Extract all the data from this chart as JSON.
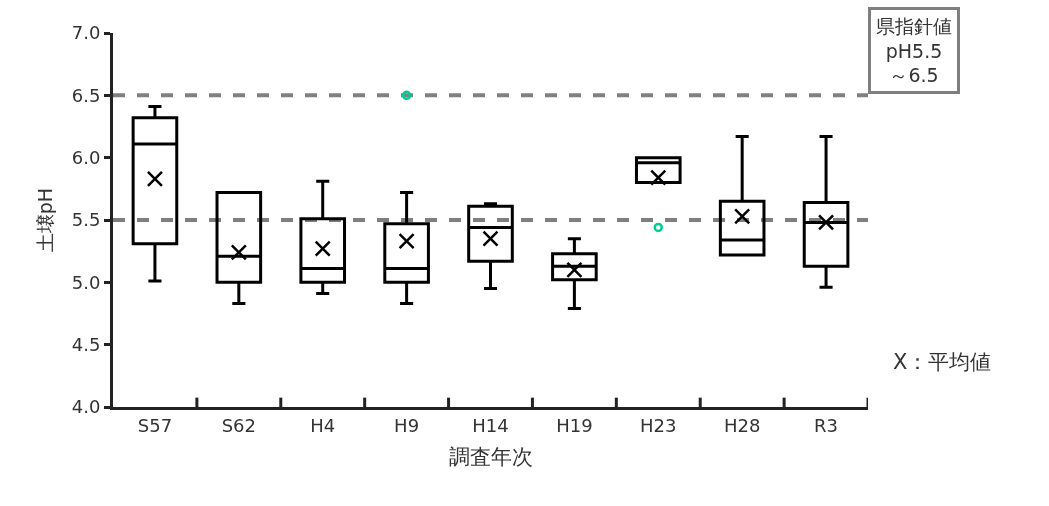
{
  "chart_data": {
    "type": "box",
    "xlabel": "調査年次",
    "ylabel": "土壌pH",
    "categories": [
      "S57",
      "S62",
      "H4",
      "H9",
      "H14",
      "H19",
      "H23",
      "H28",
      "R3"
    ],
    "boxes": [
      {
        "low": 5.01,
        "q1": 5.31,
        "median": 6.11,
        "q3": 6.32,
        "high": 6.41,
        "mean": 5.83
      },
      {
        "low": 4.83,
        "q1": 5.0,
        "median": 5.21,
        "q3": 5.72,
        "high": 5.72,
        "mean": 5.24
      },
      {
        "low": 4.91,
        "q1": 5.0,
        "median": 5.11,
        "q3": 5.51,
        "high": 5.81,
        "mean": 5.27
      },
      {
        "low": 4.83,
        "q1": 5.0,
        "median": 5.11,
        "q3": 5.47,
        "high": 5.72,
        "mean": 5.33,
        "outliers": [
          6.5
        ]
      },
      {
        "low": 4.95,
        "q1": 5.17,
        "median": 5.44,
        "q3": 5.61,
        "high": 5.63,
        "mean": 5.35
      },
      {
        "low": 4.79,
        "q1": 5.02,
        "median": 5.13,
        "q3": 5.23,
        "high": 5.35,
        "mean": 5.1
      },
      {
        "low": 5.8,
        "q1": 5.8,
        "median": 5.96,
        "q3": 6.0,
        "high": 6.0,
        "mean": 5.84,
        "outliers": [
          5.44
        ]
      },
      {
        "low": 5.22,
        "q1": 5.22,
        "median": 5.34,
        "q3": 5.65,
        "high": 6.17,
        "mean": 5.53
      },
      {
        "low": 4.96,
        "q1": 5.13,
        "median": 5.48,
        "q3": 5.64,
        "high": 6.17,
        "mean": 5.48
      }
    ],
    "color": "#000000",
    "ylim": [
      4.0,
      7.0
    ],
    "yticks": [
      {
        "value": 4.0,
        "label": "4.0"
      },
      {
        "value": 4.5,
        "label": "4.5"
      },
      {
        "value": 5.0,
        "label": "5.0"
      },
      {
        "value": 5.5,
        "label": "5.5"
      },
      {
        "value": 6.0,
        "label": "6.0"
      },
      {
        "value": 6.5,
        "label": "6.5"
      },
      {
        "value": 7.0,
        "label": "7.0"
      }
    ],
    "ref_lines": [
      {
        "axis": "y",
        "value": 5.5,
        "color": "#7f7f7f",
        "line_style": "dashed"
      },
      {
        "axis": "y",
        "value": 6.5,
        "color": "#7f7f7f",
        "line_style": "dashed"
      }
    ],
    "annotations": [
      "県指針値\npH5.5\n～6.5",
      "X：平均値"
    ],
    "grid": false
  }
}
